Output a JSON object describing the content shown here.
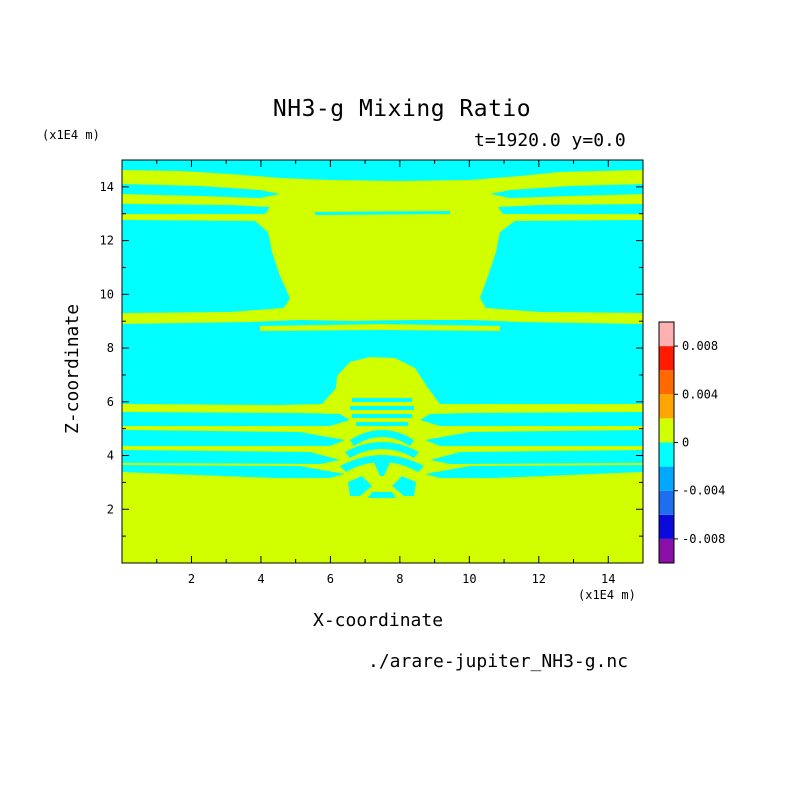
{
  "chart_data": {
    "type": "heatmap",
    "title": "NH3-g Mixing Ratio",
    "subtitle": "t=1920.0 y=0.0",
    "xlabel": "X-coordinate",
    "ylabel": "Z-coordinate",
    "x_unit": "(x1E4 m)",
    "y_unit": "(x1E4 m)",
    "xlim": [
      0.0,
      15.0
    ],
    "ylim": [
      0.0,
      15.0
    ],
    "x_ticks": [
      2,
      4,
      6,
      8,
      10,
      12,
      14
    ],
    "y_ticks": [
      2,
      4,
      6,
      8,
      10,
      12,
      14
    ],
    "x_tick_labels": [
      "2",
      "4",
      "6",
      "8",
      "10",
      "12",
      "14"
    ],
    "y_tick_labels": [
      "2",
      "4",
      "6",
      "8",
      "10",
      "12",
      "14"
    ],
    "source_file": "./arare-jupiter_NH3-g.nc",
    "field_description": "Mixing ratio field: value ~0 (yellow-green) in lower layer and central column, slightly negative (cyan) in horizontal bands and side regions",
    "colorbar": {
      "levels": [
        -0.01,
        -0.008,
        -0.006,
        -0.004,
        -0.002,
        0,
        0.002,
        0.004,
        0.006,
        0.008,
        0.01
      ],
      "tick_values": [
        0.008,
        0.004,
        0,
        -0.004,
        -0.008
      ],
      "tick_labels": [
        "0.008",
        "0.004",
        "0",
        "-0.004",
        "-0.008"
      ],
      "colors": [
        "#8a0fa8",
        "#0a0adc",
        "#1e6ef0",
        "#00a8ff",
        "#00ffff",
        "#d2ff00",
        "#ffa500",
        "#ff6a00",
        "#ff1a00",
        "#ffb0b0"
      ]
    },
    "colors": {
      "zero": "#d2ff00",
      "negative_small": "#00ffff"
    }
  }
}
